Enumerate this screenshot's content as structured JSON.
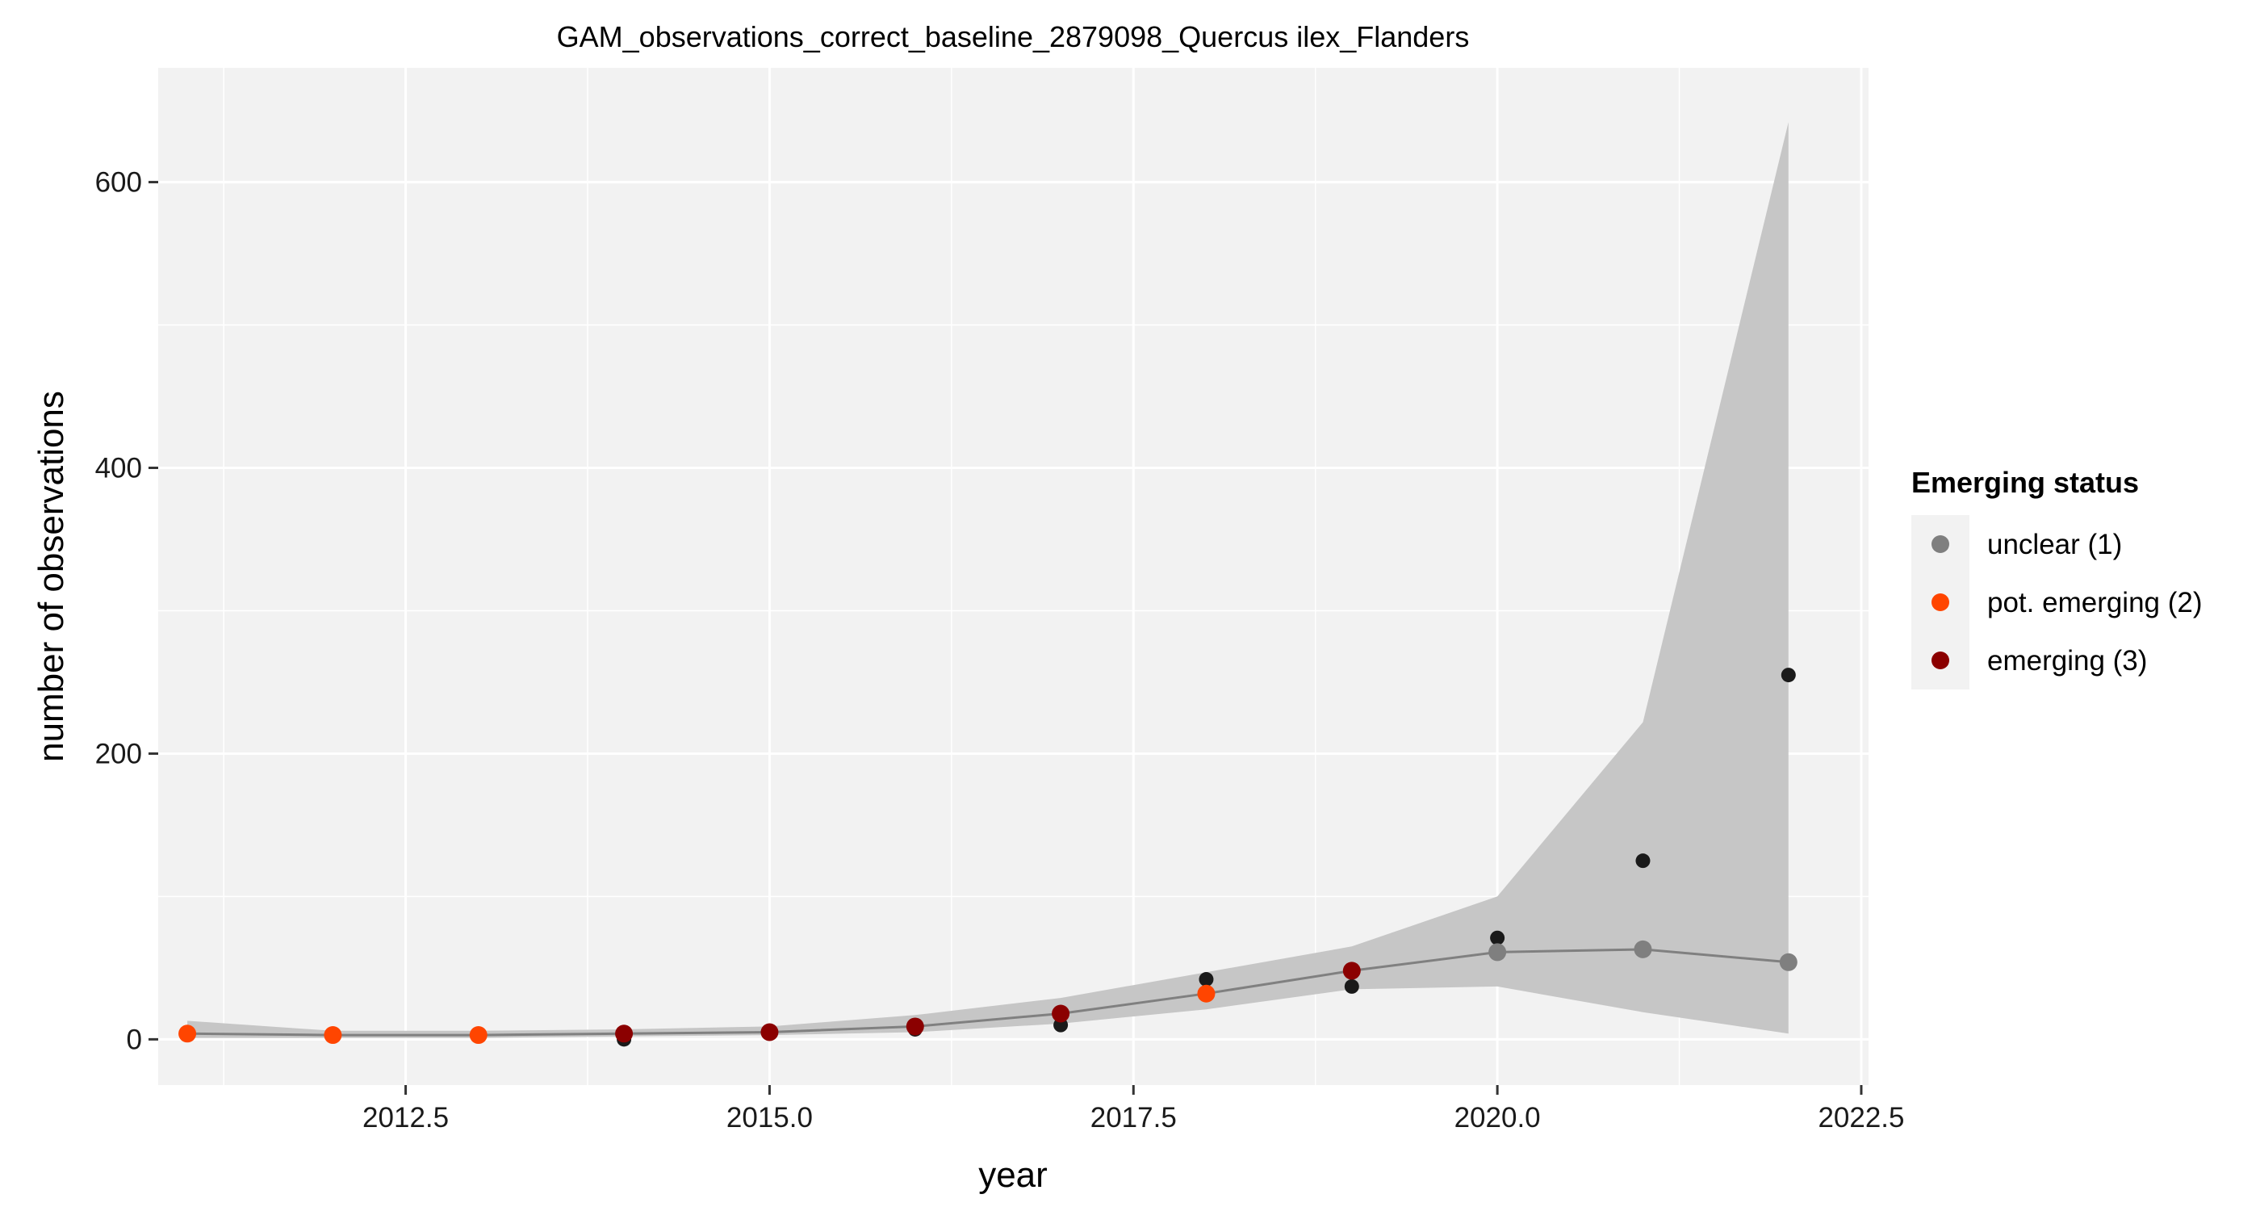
{
  "chart_data": {
    "type": "line",
    "title": "GAM_observations_correct_baseline_2879098_Quercus ilex_Flanders",
    "xlabel": "year",
    "ylabel": "number of observations",
    "xlim": [
      2010.8,
      2022.55
    ],
    "ylim": [
      -32,
      680
    ],
    "x_ticks": [
      2012.5,
      2015.0,
      2017.5,
      2020.0,
      2022.5
    ],
    "x_tick_labels": [
      "2012.5",
      "2015.0",
      "2017.5",
      "2020.0",
      "2022.5"
    ],
    "y_ticks": [
      0,
      200,
      400,
      600
    ],
    "y_tick_labels": [
      "0",
      "200",
      "400",
      "600"
    ],
    "grid": true,
    "legend": {
      "title": "Emerging status",
      "position": "right",
      "entries": [
        {
          "label": "unclear (1)",
          "color": "#7f7f7f"
        },
        {
          "label": "pot. emerging (2)",
          "color": "#ff4500"
        },
        {
          "label": "emerging (3)",
          "color": "#8b0000"
        }
      ]
    },
    "colors": {
      "panel": "#f2f2f2",
      "grid": "#ffffff",
      "ribbon": "#c6c6c6",
      "line": "#808080",
      "observed": "#1a1a1a"
    },
    "fit": {
      "x": [
        2011,
        2012,
        2013,
        2014,
        2015,
        2016,
        2017,
        2018,
        2019,
        2020,
        2021,
        2022
      ],
      "y": [
        4,
        3,
        3,
        4,
        5,
        9,
        18,
        32,
        48,
        61,
        63,
        54
      ],
      "lower": [
        1,
        1,
        1,
        2,
        3,
        5,
        11,
        21,
        35,
        37,
        19,
        4
      ],
      "upper": [
        13,
        6,
        6,
        7,
        9,
        17,
        29,
        47,
        65,
        100,
        222,
        642
      ],
      "status": [
        "pot. emerging (2)",
        "pot. emerging (2)",
        "pot. emerging (2)",
        "emerging (3)",
        "emerging (3)",
        "emerging (3)",
        "emerging (3)",
        "pot. emerging (2)",
        "emerging (3)",
        "unclear (1)",
        "unclear (1)",
        "unclear (1)"
      ]
    },
    "observed": {
      "x": [
        2011,
        2012,
        2013,
        2014,
        2015,
        2016,
        2017,
        2018,
        2019,
        2020,
        2021,
        2022
      ],
      "y": [
        4,
        3,
        3,
        0,
        5,
        7,
        10,
        42,
        37,
        71,
        125,
        255
      ]
    }
  }
}
